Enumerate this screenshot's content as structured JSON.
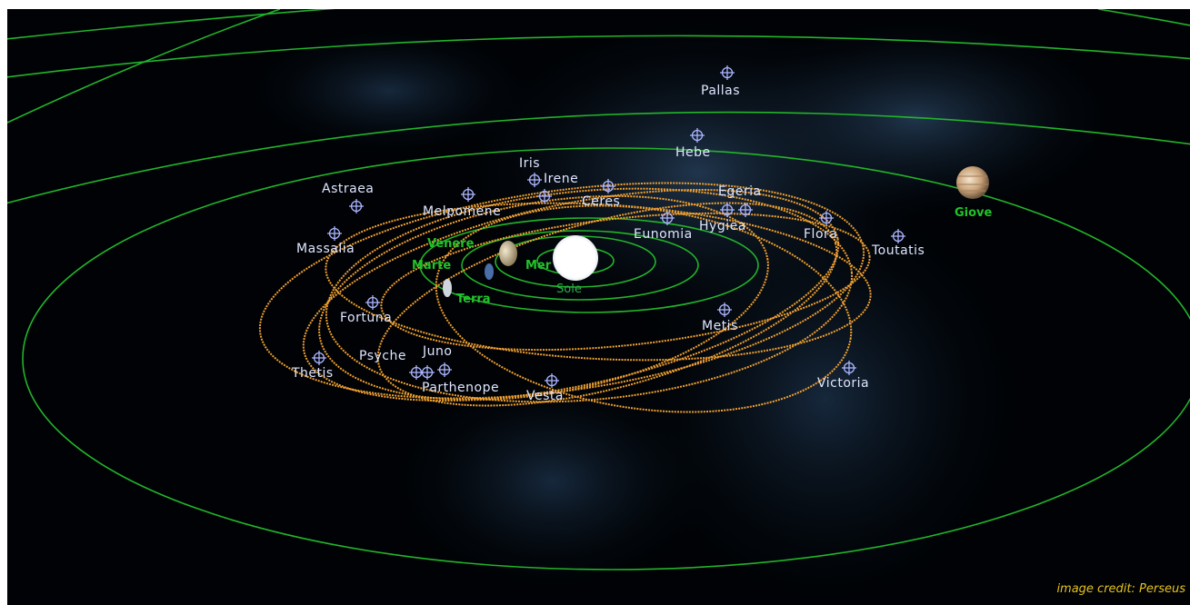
{
  "credit": "image credit: Perseus",
  "sun": {
    "label": "Sole"
  },
  "planets": {
    "mercury": "Mer",
    "venus": "Venere",
    "earth": "Terra",
    "mars": "Marte",
    "jupiter": "Giove"
  },
  "asteroids": {
    "pallas": "Pallas",
    "hebe": "Hebe",
    "iris": "Iris",
    "irene": "Irene",
    "ceres": "Ceres",
    "egeria": "Egeria",
    "astraea": "Astraea",
    "melpomene": "Melpomene",
    "eunomia": "Eunomia",
    "hygiea": "Hygiea",
    "flora": "Flora",
    "toutatis": "Toutatis",
    "massalia": "Massalia",
    "fortuna": "Fortuna",
    "metis": "Metis",
    "psyche": "Psyche",
    "juno": "Juno",
    "thetis": "Thetis",
    "parthenope": "Parthenope",
    "vesta": "Vesta",
    "victoria": "Victoria"
  },
  "colors": {
    "planet_orbit": "#22b42a",
    "asteroid_orbit": "#f0a030",
    "marker": "#aab4ff",
    "asteroid_label": "#dfe6ff",
    "planet_label": "#22c22a",
    "credit": "#e6c21e"
  }
}
